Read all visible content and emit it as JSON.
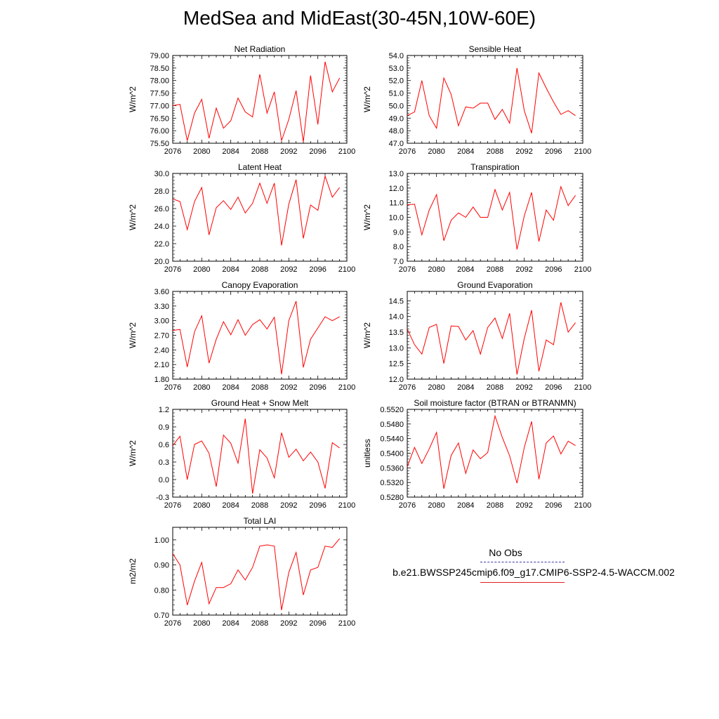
{
  "title": "MedSea and MidEast(30-45N,10W-60E)",
  "legend": {
    "obs_label": "No Obs",
    "case_label": "b.e21.BWSSP245cmip6.f09_g17.CMIP6-SSP2-4.5-WACCM.002",
    "obs_color": "#3b3bb0",
    "case_color": "#ff0000"
  },
  "chart_data": [
    {
      "type": "line",
      "title": "Net Radiation",
      "ylabel": "W/m^2",
      "x": [
        2076,
        2077,
        2078,
        2079,
        2080,
        2081,
        2082,
        2083,
        2084,
        2085,
        2086,
        2087,
        2088,
        2089,
        2090,
        2091,
        2092,
        2093,
        2094,
        2095,
        2096,
        2097,
        2098,
        2099
      ],
      "xlim": [
        2076,
        2100
      ],
      "xticks": [
        "2076",
        "2080",
        "2084",
        "2088",
        "2092",
        "2096",
        "2100"
      ],
      "ylim": [
        75.5,
        79.0
      ],
      "yticks": [
        "75.50",
        "76.00",
        "76.50",
        "77.00",
        "77.50",
        "78.00",
        "78.50",
        "79.00"
      ],
      "series": [
        {
          "values": [
            77.0,
            77.05,
            75.6,
            76.7,
            77.25,
            75.7,
            76.9,
            76.1,
            76.4,
            77.3,
            76.75,
            76.55,
            78.25,
            76.7,
            77.55,
            75.6,
            76.45,
            77.6,
            75.55,
            78.2,
            76.25,
            78.75,
            77.55,
            78.1
          ]
        }
      ]
    },
    {
      "type": "line",
      "title": "Sensible Heat",
      "ylabel": "W/m^2",
      "x": [
        2076,
        2077,
        2078,
        2079,
        2080,
        2081,
        2082,
        2083,
        2084,
        2085,
        2086,
        2087,
        2088,
        2089,
        2090,
        2091,
        2092,
        2093,
        2094,
        2095,
        2096,
        2097,
        2098,
        2099
      ],
      "xlim": [
        2076,
        2100
      ],
      "xticks": [
        "2076",
        "2080",
        "2084",
        "2088",
        "2092",
        "2096",
        "2100"
      ],
      "ylim": [
        47.0,
        54.0
      ],
      "yticks": [
        "47.0",
        "48.0",
        "49.0",
        "50.0",
        "51.0",
        "52.0",
        "53.0",
        "54.0"
      ],
      "series": [
        {
          "values": [
            49.2,
            49.5,
            52.0,
            49.2,
            48.2,
            52.2,
            50.9,
            48.4,
            49.9,
            49.8,
            50.2,
            50.2,
            48.9,
            49.7,
            48.6,
            53.0,
            49.6,
            47.8,
            52.6,
            51.4,
            50.3,
            49.3,
            49.6,
            49.2
          ]
        }
      ]
    },
    {
      "type": "line",
      "title": "Latent Heat",
      "ylabel": "W/m^2",
      "x": [
        2076,
        2077,
        2078,
        2079,
        2080,
        2081,
        2082,
        2083,
        2084,
        2085,
        2086,
        2087,
        2088,
        2089,
        2090,
        2091,
        2092,
        2093,
        2094,
        2095,
        2096,
        2097,
        2098,
        2099
      ],
      "xlim": [
        2076,
        2100
      ],
      "xticks": [
        "2076",
        "2080",
        "2084",
        "2088",
        "2092",
        "2096",
        "2100"
      ],
      "ylim": [
        20.0,
        30.0
      ],
      "yticks": [
        "20.0",
        "22.0",
        "24.0",
        "26.0",
        "28.0",
        "30.0"
      ],
      "series": [
        {
          "values": [
            27.1,
            26.8,
            23.6,
            26.8,
            28.4,
            23.0,
            26.1,
            26.9,
            25.9,
            27.3,
            25.5,
            26.6,
            28.9,
            26.6,
            28.9,
            21.8,
            26.5,
            29.3,
            22.6,
            26.4,
            25.8,
            29.7,
            27.3,
            28.4
          ]
        }
      ]
    },
    {
      "type": "line",
      "title": "Transpiration",
      "ylabel": "W/m^2",
      "x": [
        2076,
        2077,
        2078,
        2079,
        2080,
        2081,
        2082,
        2083,
        2084,
        2085,
        2086,
        2087,
        2088,
        2089,
        2090,
        2091,
        2092,
        2093,
        2094,
        2095,
        2096,
        2097,
        2098,
        2099
      ],
      "xlim": [
        2076,
        2100
      ],
      "xticks": [
        "2076",
        "2080",
        "2084",
        "2088",
        "2092",
        "2096",
        "2100"
      ],
      "ylim": [
        7.0,
        13.0
      ],
      "yticks": [
        "7.0",
        "8.0",
        "9.0",
        "10.0",
        "11.0",
        "12.0",
        "13.0"
      ],
      "series": [
        {
          "values": [
            10.85,
            10.9,
            8.8,
            10.5,
            11.55,
            8.4,
            9.8,
            10.3,
            10.0,
            10.7,
            10.0,
            10.0,
            11.9,
            10.5,
            11.7,
            7.8,
            10.1,
            11.7,
            8.35,
            10.5,
            9.8,
            12.1,
            10.8,
            11.5
          ]
        }
      ]
    },
    {
      "type": "line",
      "title": "Canopy Evaporation",
      "ylabel": "W/m^2",
      "x": [
        2076,
        2077,
        2078,
        2079,
        2080,
        2081,
        2082,
        2083,
        2084,
        2085,
        2086,
        2087,
        2088,
        2089,
        2090,
        2091,
        2092,
        2093,
        2094,
        2095,
        2096,
        2097,
        2098,
        2099
      ],
      "xlim": [
        2076,
        2100
      ],
      "xticks": [
        "2076",
        "2080",
        "2084",
        "2088",
        "2092",
        "2096",
        "2100"
      ],
      "ylim": [
        1.8,
        3.6
      ],
      "yticks": [
        "1.80",
        "2.10",
        "2.40",
        "2.70",
        "3.00",
        "3.30",
        "3.60"
      ],
      "series": [
        {
          "values": [
            2.8,
            2.82,
            2.05,
            2.77,
            3.1,
            2.13,
            2.62,
            2.98,
            2.71,
            3.02,
            2.7,
            2.92,
            3.02,
            2.83,
            3.07,
            1.9,
            3.0,
            3.4,
            2.04,
            2.62,
            2.85,
            3.08,
            3.0,
            3.08
          ]
        }
      ]
    },
    {
      "type": "line",
      "title": "Ground Evaporation",
      "ylabel": "W/m^2",
      "x": [
        2076,
        2077,
        2078,
        2079,
        2080,
        2081,
        2082,
        2083,
        2084,
        2085,
        2086,
        2087,
        2088,
        2089,
        2090,
        2091,
        2092,
        2093,
        2094,
        2095,
        2096,
        2097,
        2098,
        2099
      ],
      "xlim": [
        2076,
        2100
      ],
      "xticks": [
        "2076",
        "2080",
        "2084",
        "2088",
        "2092",
        "2096",
        "2100"
      ],
      "ylim": [
        12.0,
        14.8
      ],
      "yticks": [
        "12.0",
        "12.5",
        "13.0",
        "13.5",
        "14.0",
        "14.5"
      ],
      "series": [
        {
          "values": [
            13.6,
            13.1,
            12.8,
            13.65,
            13.75,
            12.5,
            13.7,
            13.68,
            13.25,
            13.55,
            12.8,
            13.65,
            13.95,
            13.3,
            14.1,
            12.15,
            13.3,
            14.2,
            12.25,
            13.25,
            13.1,
            14.45,
            13.5,
            13.8
          ]
        }
      ]
    },
    {
      "type": "line",
      "title": "Ground Heat + Snow Melt",
      "ylabel": "W/m^2",
      "x": [
        2076,
        2077,
        2078,
        2079,
        2080,
        2081,
        2082,
        2083,
        2084,
        2085,
        2086,
        2087,
        2088,
        2089,
        2090,
        2091,
        2092,
        2093,
        2094,
        2095,
        2096,
        2097,
        2098,
        2099
      ],
      "xlim": [
        2076,
        2100
      ],
      "xticks": [
        "2076",
        "2080",
        "2084",
        "2088",
        "2092",
        "2096",
        "2100"
      ],
      "ylim": [
        -0.3,
        1.2
      ],
      "yticks": [
        "-0.3",
        "0.0",
        "0.3",
        "0.6",
        "0.9",
        "1.2"
      ],
      "series": [
        {
          "values": [
            0.58,
            0.74,
            0.0,
            0.6,
            0.66,
            0.45,
            -0.12,
            0.76,
            0.62,
            0.28,
            1.04,
            -0.24,
            0.51,
            0.37,
            0.03,
            0.8,
            0.38,
            0.52,
            0.32,
            0.47,
            0.3,
            -0.15,
            0.63,
            0.54
          ]
        }
      ]
    },
    {
      "type": "line",
      "title": "Soil moisture factor (BTRAN or BTRANMN)",
      "ylabel": "unitless",
      "x": [
        2076,
        2077,
        2078,
        2079,
        2080,
        2081,
        2082,
        2083,
        2084,
        2085,
        2086,
        2087,
        2088,
        2089,
        2090,
        2091,
        2092,
        2093,
        2094,
        2095,
        2096,
        2097,
        2098,
        2099
      ],
      "xlim": [
        2076,
        2100
      ],
      "xticks": [
        "2076",
        "2080",
        "2084",
        "2088",
        "2092",
        "2096",
        "2100"
      ],
      "ylim": [
        0.528,
        0.552
      ],
      "yticks": [
        "0.5280",
        "0.5320",
        "0.5360",
        "0.5400",
        "0.5440",
        "0.5480",
        "0.5520"
      ],
      "series": [
        {
          "values": [
            0.5363,
            0.5416,
            0.5372,
            0.5412,
            0.5457,
            0.5303,
            0.5394,
            0.5428,
            0.5345,
            0.5409,
            0.5385,
            0.5402,
            0.5502,
            0.5443,
            0.5393,
            0.5318,
            0.5416,
            0.5487,
            0.5329,
            0.5428,
            0.5447,
            0.5398,
            0.5433,
            0.5421
          ]
        }
      ]
    },
    {
      "type": "line",
      "title": "Total LAI",
      "ylabel": "m2/m2",
      "x": [
        2076,
        2077,
        2078,
        2079,
        2080,
        2081,
        2082,
        2083,
        2084,
        2085,
        2086,
        2087,
        2088,
        2089,
        2090,
        2091,
        2092,
        2093,
        2094,
        2095,
        2096,
        2097,
        2098,
        2099
      ],
      "xlim": [
        2076,
        2100
      ],
      "xticks": [
        "2076",
        "2080",
        "2084",
        "2088",
        "2092",
        "2096",
        "2100"
      ],
      "ylim": [
        0.7,
        1.05
      ],
      "yticks": [
        "0.70",
        "0.80",
        "0.90",
        "1.00"
      ],
      "series": [
        {
          "values": [
            0.945,
            0.9,
            0.74,
            0.835,
            0.91,
            0.745,
            0.81,
            0.81,
            0.825,
            0.88,
            0.84,
            0.89,
            0.975,
            0.98,
            0.975,
            0.72,
            0.87,
            0.95,
            0.78,
            0.88,
            0.89,
            0.975,
            0.97,
            1.005
          ]
        }
      ]
    }
  ]
}
